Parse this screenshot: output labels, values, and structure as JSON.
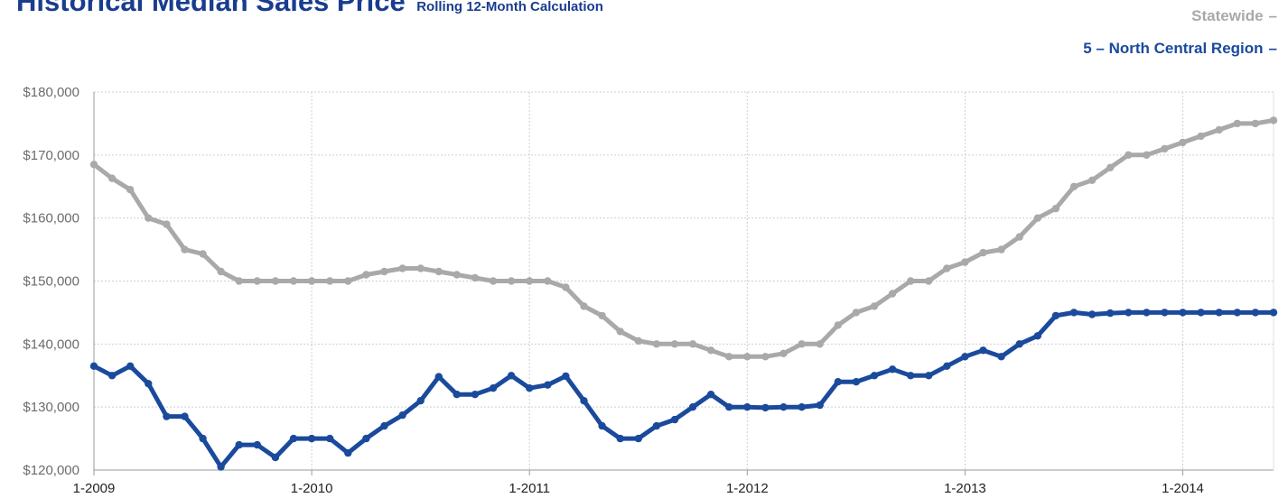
{
  "header": {
    "title": "Historical Median Sales Price",
    "subtitle": "Rolling 12-Month Calculation"
  },
  "chart_data": {
    "type": "line",
    "x_start": "1-2009",
    "x_step": "1 month",
    "xlabel": "",
    "ylabel": "",
    "ylim": [
      120000,
      180000
    ],
    "y_ticks": [
      120000,
      130000,
      140000,
      150000,
      160000,
      170000,
      180000
    ],
    "y_tick_labels": [
      "$120,000",
      "$130,000",
      "$140,000",
      "$150,000",
      "$160,000",
      "$170,000",
      "$180,000"
    ],
    "x_tick_labels": [
      "1-2009",
      "1-2010",
      "1-2011",
      "1-2012",
      "1-2013",
      "1-2014"
    ],
    "x_tick_indices": [
      0,
      12,
      24,
      36,
      48,
      60
    ],
    "grid": true,
    "legend_position": "top-right",
    "series": [
      {
        "name": "Statewide",
        "color": "#a9a9a9",
        "values": [
          168500,
          166300,
          164500,
          160000,
          159000,
          155000,
          154300,
          151500,
          150000,
          150000,
          150000,
          150000,
          150000,
          150000,
          150000,
          151000,
          151500,
          152000,
          152000,
          151500,
          151000,
          150500,
          150000,
          150000,
          150000,
          150000,
          149000,
          146000,
          144500,
          142000,
          140500,
          140000,
          140000,
          140000,
          139000,
          138000,
          138000,
          138000,
          138500,
          140000,
          140000,
          143000,
          145000,
          146000,
          148000,
          150000,
          150000,
          152000,
          153000,
          154500,
          155000,
          157000,
          160000,
          161500,
          165000,
          166000,
          168000,
          170000,
          170000,
          171000,
          172000,
          173000,
          174000,
          175000,
          175000,
          175500
        ]
      },
      {
        "name": "5 – North Central Region",
        "color": "#1a4a9c",
        "values": [
          136500,
          135000,
          136500,
          133700,
          128500,
          128500,
          125000,
          120500,
          124000,
          124000,
          122000,
          125000,
          125000,
          125000,
          122700,
          125000,
          127000,
          128700,
          131000,
          134800,
          132000,
          132000,
          133000,
          135000,
          133000,
          133500,
          134900,
          131000,
          127000,
          125000,
          125000,
          127000,
          128000,
          130000,
          132000,
          130000,
          130000,
          129900,
          130000,
          130000,
          130300,
          134000,
          134000,
          135000,
          136000,
          135000,
          135000,
          136500,
          138000,
          139000,
          138000,
          140000,
          141300,
          144500,
          145000,
          144700,
          144900,
          145000,
          145000,
          145000,
          145000,
          145000,
          145000,
          145000,
          145000,
          145000
        ]
      }
    ]
  }
}
